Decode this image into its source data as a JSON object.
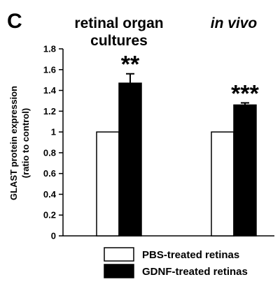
{
  "chart_data": {
    "type": "bar",
    "panel_label": "C",
    "categories": [
      {
        "title_lines": [
          "retinal organ",
          "cultures"
        ],
        "italic": false
      },
      {
        "title_lines": [
          "in vivo"
        ],
        "italic": true
      }
    ],
    "series": [
      {
        "name": "PBS-treated retinas",
        "fill": "#ffffff",
        "values": [
          1.0,
          1.0
        ],
        "errors": [
          0,
          0
        ]
      },
      {
        "name": "GDNF-treated retinas",
        "fill": "#000000",
        "values": [
          1.47,
          1.26
        ],
        "errors": [
          0.09,
          0.02
        ]
      }
    ],
    "significance": [
      "**",
      "***"
    ],
    "ylabel_lines": [
      "GLAST protein expression",
      "(ratio to control)"
    ],
    "ylim": [
      0,
      1.8
    ],
    "yticks": [
      0,
      0.2,
      0.4,
      0.6,
      0.8,
      1,
      1.2,
      1.4,
      1.6,
      1.8
    ],
    "ytick_labels": [
      "0",
      "0.2",
      "0.4",
      "0.6",
      "0.8",
      "1",
      "1.2",
      "1.4",
      "1.6",
      "1.8"
    ],
    "legend_position": "bottom",
    "grid": false
  }
}
